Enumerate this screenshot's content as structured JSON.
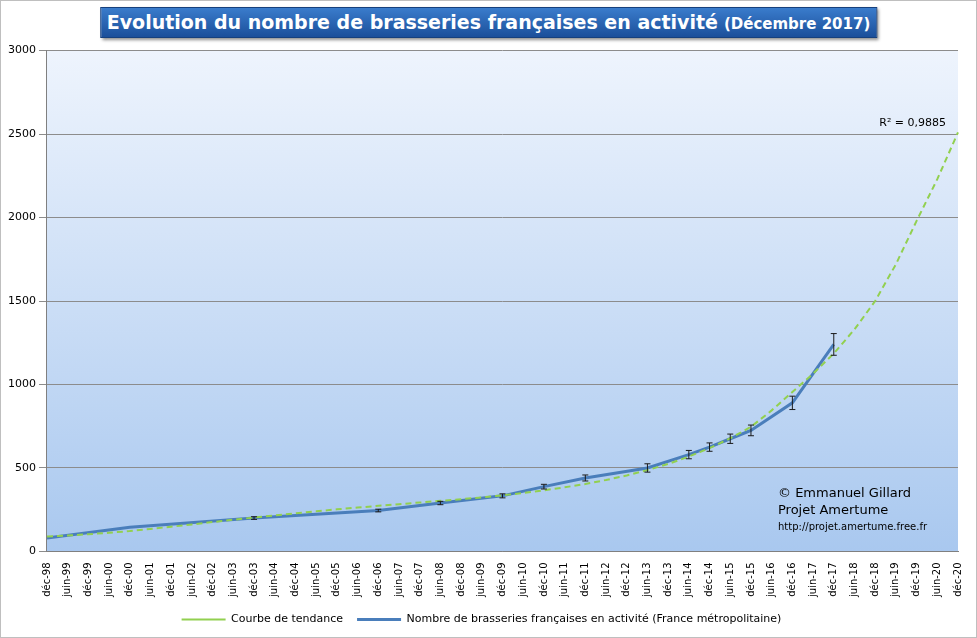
{
  "chart_data": {
    "type": "line",
    "title": "Evolution du nombre de brasseries françaises en activité",
    "subtitle": "(Décembre 2017)",
    "categories": [
      "déc-98",
      "juin-99",
      "déc-99",
      "juin-00",
      "déc-00",
      "juin-01",
      "déc-01",
      "juin-02",
      "déc-02",
      "juin-03",
      "déc-03",
      "juin-04",
      "déc-04",
      "juin-05",
      "déc-05",
      "juin-06",
      "déc-06",
      "juin-07",
      "déc-07",
      "juin-08",
      "déc-08",
      "juin-09",
      "déc-09",
      "juin-10",
      "déc-10",
      "juin-11",
      "déc-11",
      "juin-12",
      "déc-12",
      "juin-13",
      "déc-13",
      "juin-14",
      "déc-14",
      "juin-15",
      "déc-15",
      "juin-16",
      "déc-16",
      "juin-17",
      "déc-17",
      "juin-18",
      "déc-18",
      "juin-19",
      "déc-19",
      "juin-20",
      "déc-20"
    ],
    "series": [
      {
        "name": "Nombre de brasseries françaises en activité (France métropolitaine)",
        "color": "#4a7ebb",
        "marker": "none",
        "line_style": "solid",
        "values": [
          80,
          null,
          null,
          null,
          145,
          null,
          null,
          null,
          null,
          null,
          200,
          null,
          null,
          null,
          null,
          null,
          245,
          null,
          null,
          290,
          null,
          null,
          333,
          null,
          388,
          null,
          440,
          null,
          null,
          500,
          null,
          580,
          625,
          675,
          725,
          null,
          890,
          null,
          1240,
          null,
          null,
          null,
          null,
          null,
          null
        ],
        "errors": [
          null,
          null,
          null,
          null,
          null,
          null,
          null,
          null,
          null,
          null,
          8,
          null,
          null,
          null,
          null,
          null,
          8,
          null,
          null,
          10,
          null,
          null,
          12,
          null,
          14,
          null,
          18,
          null,
          null,
          25,
          null,
          25,
          25,
          28,
          32,
          null,
          40,
          null,
          65,
          null,
          null,
          null,
          null,
          null,
          null
        ]
      },
      {
        "name": "Courbe de tendance",
        "color": "#92d050",
        "marker": "none",
        "line_style": "dashed",
        "values": [
          90,
          95,
          103,
          112,
          122,
          135,
          148,
          162,
          176,
          190,
          203,
          216,
          228,
          240,
          252,
          263,
          273,
          283,
          293,
          303,
          313,
          324,
          336,
          350,
          366,
          384,
          404,
          428,
          455,
          487,
          524,
          568,
          619,
          678,
          746,
          845,
          955,
          1065,
          1185,
          1330,
          1500,
          1720,
          1980,
          2230,
          2510
        ]
      }
    ],
    "ylim": [
      0,
      3000
    ],
    "yticks": [
      0,
      500,
      1000,
      1500,
      2000,
      2500,
      3000
    ],
    "grid": true,
    "legend": "bottom",
    "annotations": [
      "R² = 0,9885",
      "© Emmanuel Gillard",
      "Projet Amertume",
      "http://projet.amertume.free.fr"
    ]
  }
}
